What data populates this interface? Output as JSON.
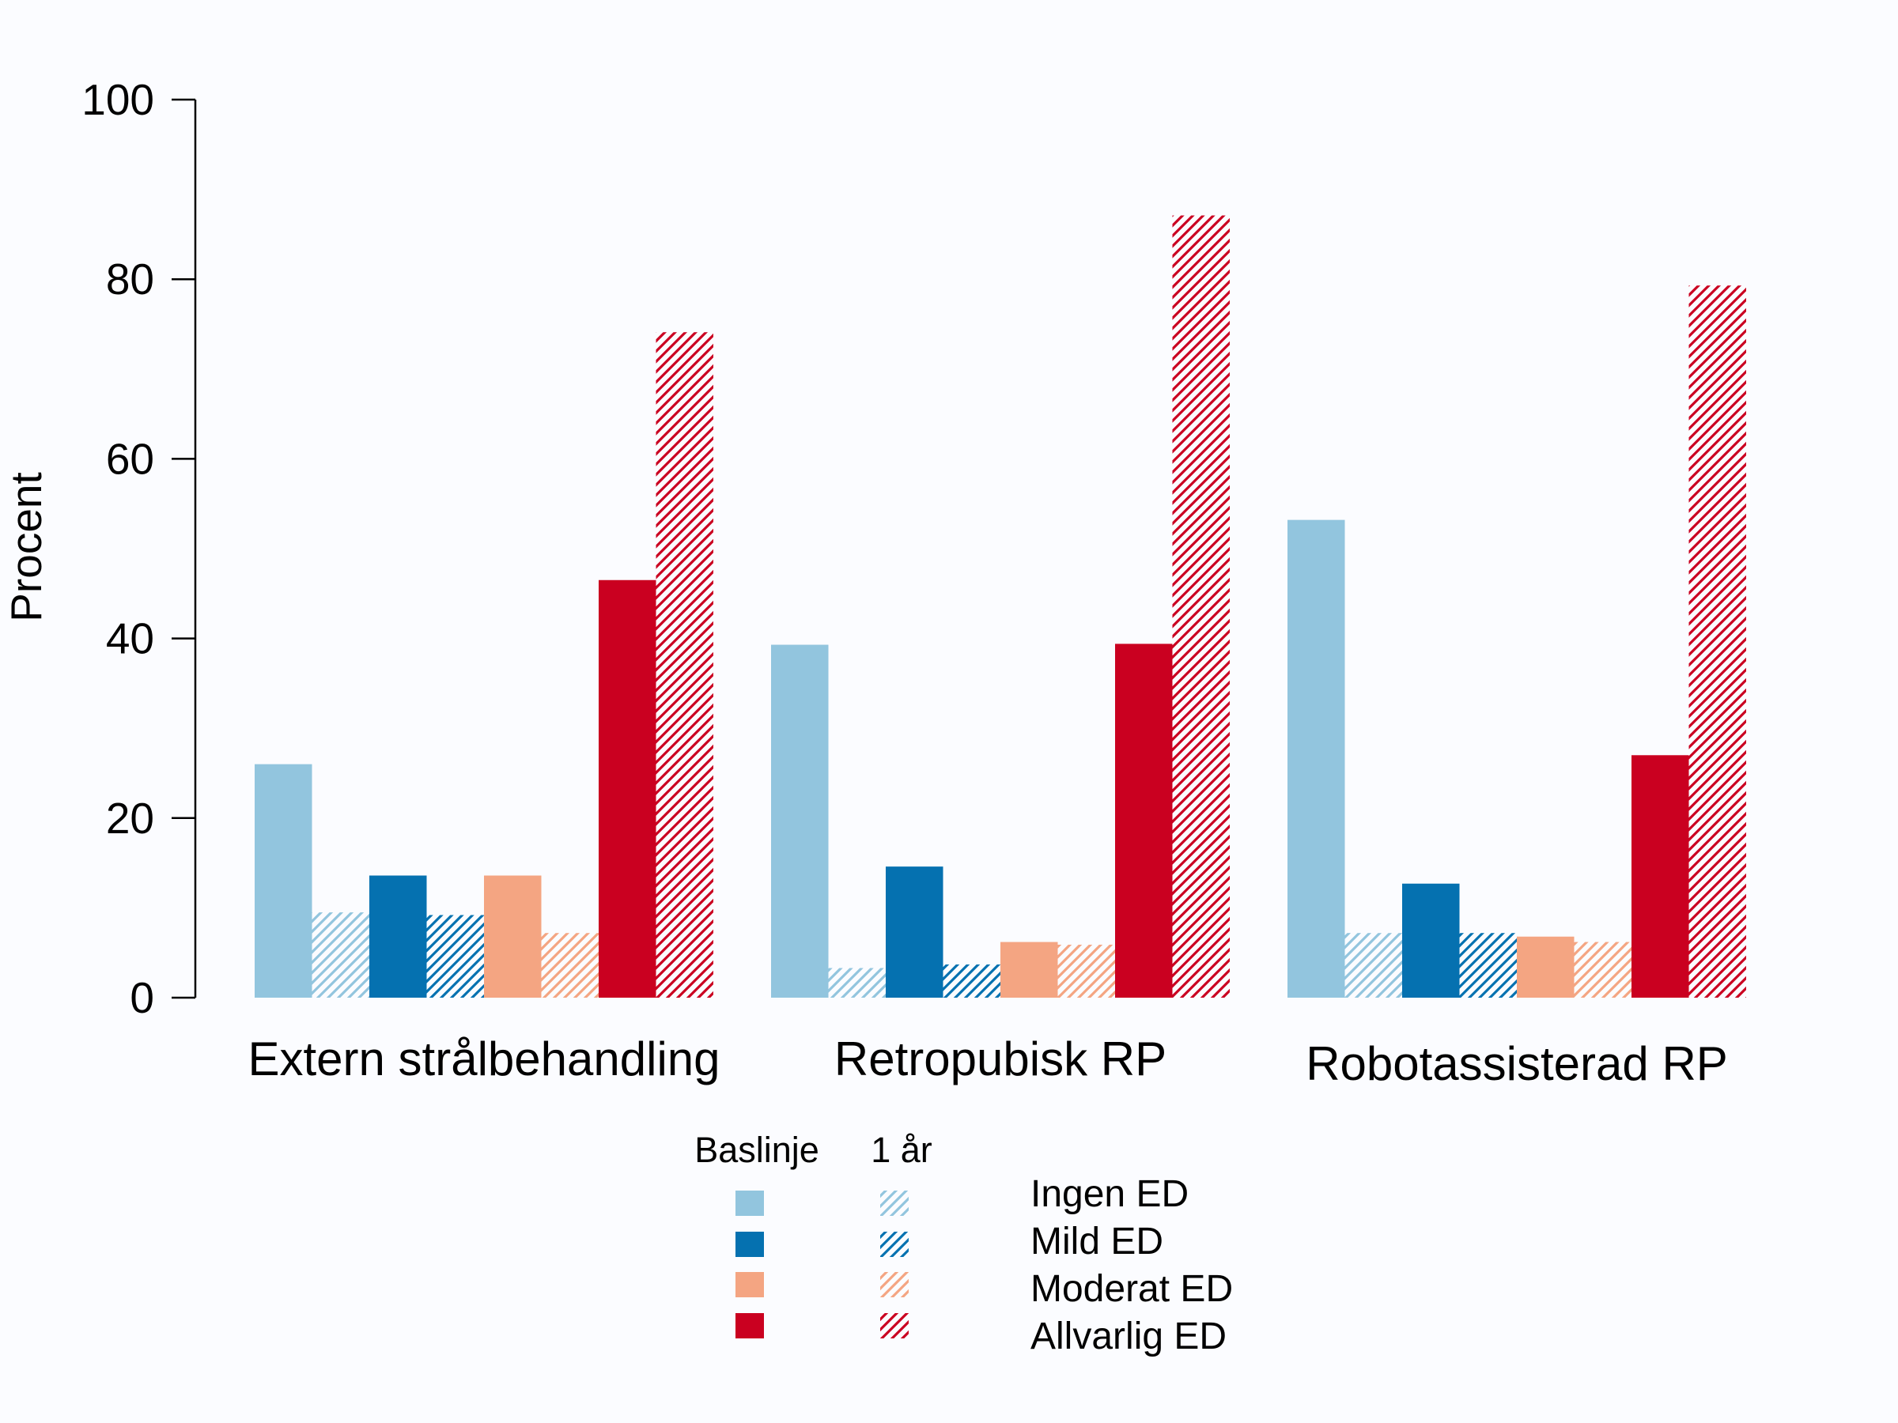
{
  "chart_data": {
    "type": "bar",
    "ylabel": "Procent",
    "xlabel": "",
    "ylim": [
      0,
      100
    ],
    "yticks": [
      0,
      20,
      40,
      60,
      80,
      100
    ],
    "grid": false,
    "categories": [
      "Extern strålbehandling",
      "Retropubisk RP",
      "Robotassisterad RP"
    ],
    "legend": {
      "placement": "bottom-center",
      "baseline_header": "Baslinje",
      "followup_header": "1 år"
    },
    "series": [
      {
        "name": "Ingen ED",
        "color": "#92c5de",
        "baseline": [
          26,
          39.3,
          53.2
        ],
        "one_year": [
          9.5,
          3.3,
          7.2
        ]
      },
      {
        "name": "Mild ED",
        "color": "#0571b0",
        "baseline": [
          13.6,
          14.6,
          12.7
        ],
        "one_year": [
          9.2,
          3.7,
          7.2
        ]
      },
      {
        "name": "Moderat ED",
        "color": "#f4a582",
        "baseline": [
          13.6,
          6.2,
          6.8
        ],
        "one_year": [
          7.2,
          5.9,
          6.2
        ]
      },
      {
        "name": "Allvarlig ED",
        "color": "#ca0020",
        "baseline": [
          46.5,
          39.4,
          27
        ],
        "one_year": [
          74.1,
          87.1,
          79.3
        ]
      }
    ]
  }
}
